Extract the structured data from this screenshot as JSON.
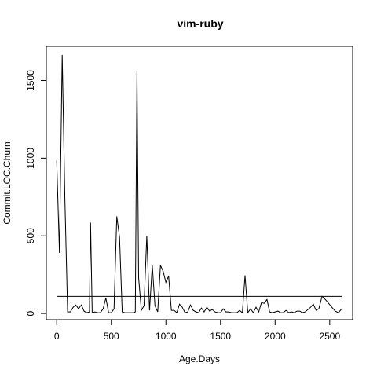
{
  "chart_data": {
    "type": "line",
    "title": "vim-ruby",
    "xlabel": "Age.Days",
    "ylabel": "Commit.LOC.Churn",
    "xlim": [
      -95,
      2710
    ],
    "ylim": [
      -40,
      1720
    ],
    "x_ticks": [
      0,
      500,
      1000,
      1500,
      2000,
      2500
    ],
    "y_ticks": [
      0,
      500,
      1000,
      1500
    ],
    "x_tick_labels": [
      "0",
      "500",
      "1000",
      "1500",
      "2000",
      "2500"
    ],
    "y_tick_labels": [
      "0",
      "500",
      "1000",
      "1500"
    ],
    "grid": false,
    "series": [
      {
        "x": [
          0,
          25,
          50,
          75,
          100,
          125,
          150,
          175,
          200,
          225,
          250,
          275,
          300,
          310,
          325,
          350,
          375,
          400,
          425,
          450,
          475,
          500,
          525,
          550,
          575,
          600,
          625,
          650,
          675,
          700,
          720,
          735,
          750,
          775,
          800,
          825,
          850,
          875,
          900,
          925,
          950,
          975,
          1000,
          1025,
          1050,
          1075,
          1100,
          1125,
          1150,
          1175,
          1200,
          1225,
          1250,
          1275,
          1300,
          1325,
          1350,
          1375,
          1400,
          1425,
          1450,
          1475,
          1500,
          1525,
          1550,
          1575,
          1600,
          1625,
          1650,
          1675,
          1700,
          1725,
          1750,
          1775,
          1800,
          1825,
          1850,
          1875,
          1900,
          1925,
          1950,
          1975,
          2000,
          2025,
          2050,
          2075,
          2100,
          2125,
          2150,
          2175,
          2200,
          2225,
          2250,
          2275,
          2300,
          2325,
          2350,
          2375,
          2400,
          2430,
          2460,
          2490,
          2520,
          2550,
          2580,
          2610
        ],
        "y": [
          985,
          390,
          1665,
          740,
          10,
          10,
          40,
          55,
          30,
          55,
          15,
          5,
          10,
          585,
          5,
          10,
          5,
          5,
          30,
          100,
          5,
          5,
          30,
          625,
          490,
          10,
          5,
          5,
          5,
          5,
          10,
          1560,
          230,
          20,
          50,
          500,
          20,
          310,
          50,
          10,
          310,
          270,
          200,
          240,
          20,
          20,
          5,
          60,
          40,
          5,
          10,
          55,
          20,
          10,
          5,
          35,
          10,
          40,
          15,
          25,
          10,
          5,
          5,
          30,
          10,
          10,
          5,
          5,
          5,
          20,
          5,
          245,
          5,
          30,
          5,
          40,
          10,
          70,
          65,
          90,
          10,
          5,
          10,
          15,
          5,
          5,
          20,
          5,
          10,
          5,
          15,
          15,
          5,
          10,
          25,
          40,
          60,
          20,
          30,
          110,
          90,
          65,
          40,
          15,
          5,
          30
        ]
      }
    ],
    "reference_line": {
      "y": 110,
      "x": [
        0,
        2610
      ]
    }
  }
}
